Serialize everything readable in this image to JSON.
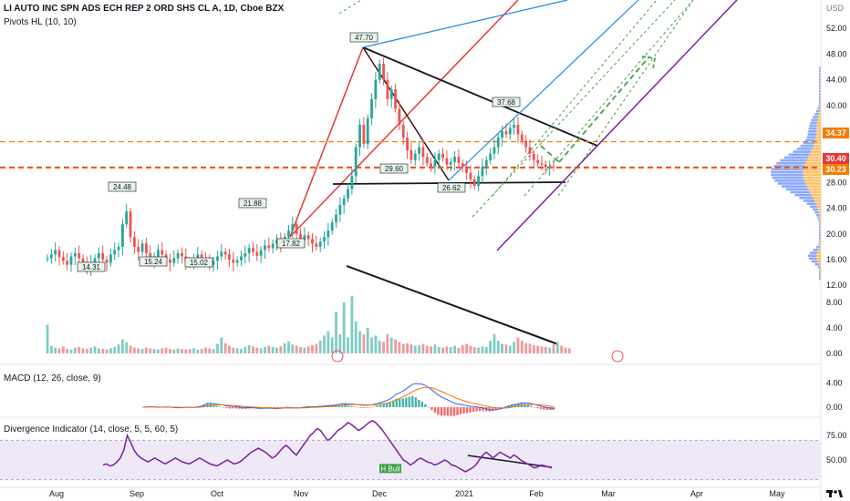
{
  "header": {
    "title": "LI AUTO INC SPN ADS ECH REP 2 ORD SHS CL A, 1D, Cboe BZX",
    "indicator": "Pivots HL (10, 10)"
  },
  "currency": "USD",
  "badges": [
    {
      "label": "34.37",
      "color": "#f57c00"
    },
    {
      "label": "30.40",
      "color": "#e53935"
    },
    {
      "label": "30.23",
      "color": "#f57c00"
    }
  ],
  "panes": {
    "macd_label": "MACD (12, 26, close, 9)",
    "div_label": "Divergence Indicator (14, close, 5, 5, 60, 5)"
  },
  "chart_data": [
    {
      "type": "candlestick",
      "title": "LI AUTO INC SPN ADS ECH REP 2 ORD SHS CL A, 1D, Cboe BZX",
      "y_ticks": [
        "52.00",
        "48.00",
        "44.00",
        "40.00",
        "36.00",
        "32.00",
        "28.00",
        "24.00",
        "20.00",
        "16.00",
        "12.00"
      ],
      "y_tick_values": [
        52,
        48,
        44,
        40,
        36,
        32,
        28,
        24,
        20,
        16,
        12
      ],
      "x_ticks": [
        "Aug",
        "Sep",
        "Oct",
        "Nov",
        "Dec",
        "2021",
        "Feb",
        "Mar",
        "Apr",
        "May"
      ],
      "horizontal_levels": [
        34.37,
        30.4,
        30.23
      ],
      "pivot_labels": [
        "14.31",
        "24.48",
        "15.24",
        "15.02",
        "21.88",
        "17.82",
        "47.70",
        "29.60",
        "26.62",
        "37.68"
      ],
      "approx_closes": [
        16.2,
        16.8,
        17.5,
        16.4,
        15.8,
        15.2,
        16.5,
        17.0,
        16.2,
        15.6,
        14.8,
        15.5,
        16.2,
        17.0,
        16.0,
        15.5,
        16.8,
        17.5,
        18.0,
        21.5,
        23.5,
        19.5,
        18.0,
        17.2,
        18.5,
        17.0,
        16.0,
        16.5,
        17.5,
        16.8,
        16.0,
        15.5,
        16.2,
        17.0,
        16.5,
        15.8,
        15.3,
        16.0,
        16.8,
        16.2,
        15.6,
        15.2,
        15.8,
        16.5,
        17.2,
        16.8,
        16.0,
        15.5,
        15.9,
        16.5,
        17.0,
        17.8,
        17.2,
        16.6,
        17.5,
        18.2,
        17.8,
        18.5,
        19.0,
        18.5,
        19.5,
        20.5,
        21.5,
        20.0,
        19.0,
        19.8,
        19.2,
        18.5,
        18.0,
        18.8,
        19.5,
        20.5,
        21.8,
        23.0,
        24.5,
        25.5,
        27.0,
        29.0,
        33.5,
        37.0,
        34.0,
        38.0,
        41.0,
        44.0,
        46.5,
        44.0,
        41.0,
        42.5,
        39.5,
        37.0,
        35.0,
        33.0,
        31.5,
        32.5,
        33.5,
        32.0,
        31.0,
        30.5,
        31.5,
        32.5,
        31.8,
        30.8,
        31.2,
        32.0,
        31.0,
        30.5,
        29.5,
        28.5,
        27.5,
        29.0,
        30.5,
        31.5,
        32.5,
        33.5,
        35.0,
        36.0,
        35.5,
        36.5,
        37.0,
        35.5,
        34.5,
        33.5,
        32.5,
        31.5,
        31.0,
        30.8,
        30.4,
        30.5,
        30.4
      ]
    },
    {
      "type": "bar",
      "title": "Volume",
      "y_ticks": [
        "8.00",
        "4.00",
        "0.00"
      ],
      "y_tick_values": [
        8,
        4,
        0
      ],
      "approx_values": [
        4.5,
        1.2,
        0.9,
        0.8,
        1.1,
        0.7,
        0.6,
        0.9,
        1.0,
        0.8,
        0.7,
        0.9,
        1.1,
        0.8,
        0.7,
        0.6,
        0.8,
        1.0,
        1.4,
        2.2,
        1.8,
        1.2,
        0.9,
        0.8,
        0.7,
        0.9,
        0.8,
        0.7,
        0.6,
        0.8,
        0.9,
        0.7,
        0.6,
        0.8,
        0.7,
        0.6,
        0.7,
        0.8,
        0.6,
        0.7,
        0.9,
        0.8,
        0.7,
        1.5,
        2.5,
        1.6,
        1.2,
        0.9,
        0.8,
        0.7,
        1.0,
        1.3,
        1.1,
        0.9,
        0.8,
        1.0,
        1.2,
        1.0,
        0.9,
        1.1,
        1.6,
        1.9,
        1.4,
        1.2,
        1.0,
        0.9,
        1.1,
        1.3,
        1.5,
        2.0,
        2.8,
        3.5,
        2.5,
        6.5,
        3.0,
        8.0,
        2.5,
        9.0,
        5.0,
        3.5,
        3.0,
        4.0,
        2.5,
        2.8,
        2.0,
        1.8,
        3.0,
        2.5,
        2.2,
        1.8,
        1.5,
        1.6,
        1.4,
        1.2,
        1.3,
        1.5,
        1.2,
        1.1,
        1.4,
        1.0,
        0.9,
        1.1,
        1.0,
        1.2,
        0.9,
        1.3,
        1.5,
        1.2,
        1.0,
        0.9,
        1.1,
        1.0,
        2.0,
        3.0,
        2.0,
        1.5,
        1.4,
        1.2,
        1.8,
        2.5,
        2.0,
        1.6,
        1.5,
        1.3,
        1.2,
        1.1,
        1.0,
        0.9,
        1.4,
        1.8,
        1.2,
        0.9,
        0.8
      ]
    },
    {
      "type": "line",
      "title": "MACD (12, 26, close, 9)",
      "y_ticks": [
        "4.00",
        "0.00"
      ],
      "y_tick_values": [
        4,
        0
      ]
    },
    {
      "type": "line",
      "title": "Divergence Indicator (14, close, 5, 5, 60, 5)",
      "y_ticks": [
        "75.00",
        "50.00"
      ],
      "y_tick_values": [
        75,
        50
      ],
      "label": "H Bull",
      "approx_values": [
        45,
        46,
        44,
        45,
        48,
        52,
        60,
        75,
        68,
        60,
        55,
        52,
        50,
        48,
        50,
        52,
        50,
        48,
        46,
        48,
        50,
        52,
        50,
        48,
        47,
        46,
        48,
        50,
        52,
        50,
        48,
        46,
        45,
        44,
        46,
        48,
        50,
        48,
        46,
        47,
        49,
        52,
        55,
        58,
        60,
        62,
        60,
        58,
        55,
        52,
        54,
        58,
        62,
        65,
        62,
        58,
        55,
        60,
        65,
        70,
        75,
        78,
        82,
        80,
        75,
        70,
        72,
        76,
        80,
        82,
        85,
        88,
        86,
        83,
        80,
        82,
        85,
        88,
        90,
        88,
        84,
        80,
        75,
        70,
        65,
        60,
        55,
        50,
        48,
        45,
        47,
        50,
        52,
        50,
        48,
        47,
        45,
        46,
        48,
        50,
        48,
        45,
        44,
        42,
        40,
        38,
        40,
        42,
        45,
        50,
        55,
        58,
        55,
        52,
        55,
        58,
        56,
        54,
        52,
        55,
        53,
        50,
        48,
        46,
        44,
        42,
        43,
        45,
        44,
        43,
        42
      ]
    }
  ]
}
